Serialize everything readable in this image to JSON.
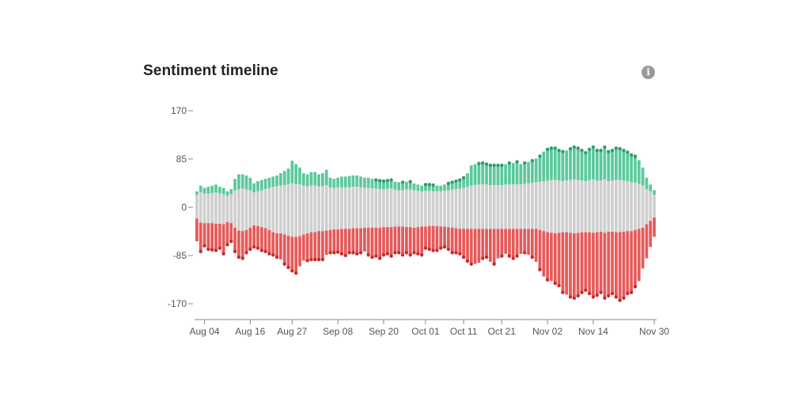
{
  "header": {
    "title": "Sentiment timeline",
    "info_icon": "info-icon",
    "info_glyph": "i"
  },
  "colors": {
    "positive": "#5cc99c",
    "positive_dot": "#2e9e6b",
    "neutral": "#cfcfcf",
    "negative": "#e55a5a",
    "negative_dot": "#c42d2d",
    "axis": "#888888"
  },
  "chart_data": {
    "type": "bar",
    "stacked": true,
    "title": "Sentiment timeline",
    "xlabel": "",
    "ylabel": "",
    "ylim": [
      -170,
      170
    ],
    "yticks": [
      170,
      85,
      0,
      -85,
      -170
    ],
    "xtick_labels": [
      "Aug 04",
      "Aug 16",
      "Aug 27",
      "Sep 08",
      "Sep 20",
      "Oct 01",
      "Oct 11",
      "Oct 21",
      "Nov 02",
      "Nov 14",
      "Nov 30"
    ],
    "xtick_indices": [
      2,
      14,
      25,
      37,
      49,
      60,
      70,
      80,
      92,
      104,
      120
    ],
    "grid": false,
    "series_keys": [
      "neutral_pos",
      "positive",
      "neutral_neg",
      "negative"
    ],
    "positive_top": [
      28,
      38,
      34,
      36,
      38,
      40,
      36,
      34,
      28,
      32,
      50,
      58,
      58,
      56,
      52,
      42,
      46,
      48,
      50,
      52,
      54,
      56,
      60,
      64,
      68,
      82,
      76,
      70,
      60,
      58,
      62,
      62,
      58,
      60,
      66,
      52,
      50,
      52,
      54,
      54,
      55,
      56,
      56,
      54,
      52,
      52,
      50,
      48,
      47,
      46,
      47,
      48,
      45,
      44,
      44,
      45,
      45,
      42,
      40,
      38,
      40,
      40,
      39,
      38,
      38,
      40,
      42,
      44,
      46,
      48,
      52,
      60,
      74,
      76,
      77,
      78,
      76,
      74,
      74,
      74,
      74,
      76,
      78,
      78,
      80,
      76,
      78,
      80,
      82,
      86,
      90,
      98,
      102,
      104,
      104,
      100,
      98,
      100,
      103,
      106,
      104,
      100,
      96,
      102,
      106,
      100,
      100,
      106,
      98,
      100,
      104,
      103,
      100,
      97,
      92,
      90,
      83,
      70,
      52,
      40,
      30
    ],
    "neutral_top": [
      22,
      26,
      24,
      24,
      25,
      26,
      24,
      23,
      20,
      23,
      30,
      32,
      33,
      31,
      30,
      26,
      28,
      30,
      32,
      34,
      36,
      37,
      38,
      39,
      40,
      42,
      41,
      40,
      38,
      37,
      38,
      38,
      37,
      37,
      39,
      35,
      34,
      35,
      35,
      35,
      35,
      36,
      36,
      35,
      34,
      34,
      33,
      33,
      32,
      32,
      32,
      33,
      31,
      30,
      30,
      31,
      31,
      30,
      29,
      28,
      29,
      29,
      28,
      28,
      28,
      29,
      30,
      31,
      32,
      33,
      34,
      36,
      38,
      39,
      40,
      41,
      40,
      39,
      39,
      39,
      39,
      40,
      40,
      40,
      41,
      40,
      41,
      42,
      43,
      44,
      45,
      46,
      47,
      48,
      48,
      47,
      46,
      47,
      48,
      49,
      48,
      47,
      46,
      48,
      49,
      47,
      47,
      49,
      46,
      47,
      48,
      48,
      47,
      46,
      44,
      43,
      41,
      38,
      32,
      28,
      22
    ],
    "neutral_bottom": [
      -20,
      -27,
      -28,
      -28,
      -28,
      -29,
      -29,
      -30,
      -26,
      -28,
      -36,
      -41,
      -42,
      -40,
      -36,
      -32,
      -33,
      -35,
      -37,
      -40,
      -44,
      -46,
      -46,
      -48,
      -50,
      -52,
      -52,
      -51,
      -48,
      -46,
      -44,
      -44,
      -42,
      -42,
      -41,
      -40,
      -39,
      -39,
      -38,
      -38,
      -38,
      -37,
      -37,
      -37,
      -36,
      -36,
      -36,
      -36,
      -36,
      -35,
      -35,
      -35,
      -34,
      -34,
      -34,
      -35,
      -35,
      -36,
      -35,
      -34,
      -34,
      -33,
      -33,
      -33,
      -34,
      -34,
      -35,
      -36,
      -37,
      -38,
      -38,
      -38,
      -38,
      -38,
      -38,
      -38,
      -38,
      -38,
      -38,
      -38,
      -38,
      -38,
      -38,
      -38,
      -38,
      -38,
      -38,
      -38,
      -38,
      -38,
      -40,
      -42,
      -44,
      -45,
      -46,
      -45,
      -44,
      -44,
      -45,
      -46,
      -45,
      -44,
      -44,
      -44,
      -45,
      -44,
      -43,
      -45,
      -43,
      -43,
      -44,
      -44,
      -43,
      -42,
      -42,
      -40,
      -38,
      -36,
      -30,
      -24,
      -18
    ],
    "negative_bottom": [
      -60,
      -78,
      -68,
      -74,
      -75,
      -76,
      -72,
      -82,
      -66,
      -60,
      -78,
      -88,
      -90,
      -80,
      -74,
      -70,
      -72,
      -76,
      -78,
      -82,
      -84,
      -88,
      -92,
      -100,
      -106,
      -112,
      -116,
      -104,
      -94,
      -94,
      -92,
      -92,
      -92,
      -92,
      -84,
      -80,
      -80,
      -79,
      -82,
      -85,
      -80,
      -80,
      -82,
      -80,
      -78,
      -84,
      -88,
      -86,
      -90,
      -84,
      -82,
      -86,
      -80,
      -80,
      -84,
      -80,
      -84,
      -80,
      -82,
      -84,
      -72,
      -74,
      -76,
      -76,
      -72,
      -70,
      -74,
      -80,
      -80,
      -82,
      -88,
      -95,
      -100,
      -100,
      -98,
      -90,
      -88,
      -96,
      -100,
      -90,
      -86,
      -82,
      -86,
      -90,
      -86,
      -82,
      -80,
      -84,
      -88,
      -96,
      -110,
      -122,
      -128,
      -130,
      -134,
      -138,
      -150,
      -154,
      -158,
      -160,
      -156,
      -150,
      -146,
      -152,
      -158,
      -155,
      -150,
      -160,
      -156,
      -152,
      -158,
      -164,
      -160,
      -152,
      -150,
      -140,
      -130,
      -108,
      -90,
      -70,
      -52
    ],
    "positive_dot_indices": [
      47,
      48,
      49,
      50,
      51,
      54,
      56,
      60,
      61,
      62,
      66,
      67,
      68,
      69,
      70,
      74,
      75,
      76,
      77,
      78,
      79,
      80,
      82,
      84,
      86,
      88,
      90,
      92,
      93,
      94,
      95,
      96,
      98,
      99,
      100,
      101,
      102,
      103,
      104,
      105,
      106,
      107,
      108,
      109,
      110,
      111,
      112,
      113,
      114,
      115
    ],
    "negative_dot_indices": [
      1,
      2,
      3,
      4,
      5,
      6,
      7,
      8,
      9,
      10,
      11,
      12,
      13,
      14,
      15,
      16,
      17,
      18,
      19,
      20,
      21,
      23,
      24,
      25,
      26,
      29,
      30,
      31,
      32,
      33,
      35,
      36,
      37,
      38,
      39,
      40,
      41,
      42,
      43,
      45,
      46,
      47,
      48,
      49,
      50,
      51,
      52,
      53,
      54,
      55,
      56,
      57,
      58,
      59,
      60,
      61,
      62,
      63,
      64,
      65,
      66,
      67,
      68,
      69,
      70,
      71,
      72,
      75,
      76,
      78,
      80,
      82,
      83,
      84,
      86,
      88,
      90,
      92,
      94,
      95,
      96,
      98,
      99,
      100,
      101,
      102,
      103,
      104,
      105,
      106,
      107,
      108,
      109,
      110,
      111,
      112,
      113,
      114,
      115
    ]
  }
}
